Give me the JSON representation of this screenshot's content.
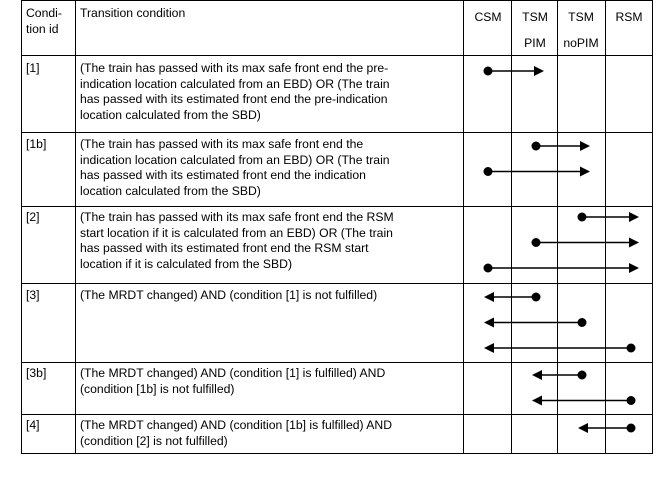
{
  "header": {
    "condition_id": "Condi-\ntion id",
    "transition_condition": "Transition condition",
    "modes": [
      {
        "line1": "CSM",
        "line2": ""
      },
      {
        "line1": "TSM",
        "line2": "PIM"
      },
      {
        "line1": "TSM",
        "line2": "noPIM"
      },
      {
        "line1": "RSM",
        "line2": ""
      }
    ]
  },
  "rows": [
    {
      "id": "[1]",
      "text": "(The train has passed with its max safe front end the pre-\nindication location calculated from an EBD) OR (The train\nhas passed with its estimated front end the pre-indication\nlocation calculated from the SBD)",
      "transitions": [
        {
          "from": "CSM",
          "to": "TSM PIM",
          "direction": "right"
        }
      ]
    },
    {
      "id": "[1b]",
      "text": "(The train has passed with its max safe front end the\nindication location calculated from an EBD) OR (The train\nhas passed with its estimated front end the indication\nlocation calculated from the SBD)",
      "transitions": [
        {
          "from": "TSM PIM",
          "to": "TSM noPIM",
          "direction": "right"
        },
        {
          "from": "CSM",
          "to": "TSM noPIM",
          "direction": "right"
        }
      ]
    },
    {
      "id": "[2]",
      "text": "(The train has passed with its max safe front end the RSM\nstart location if it is calculated from an EBD) OR (The train\nhas passed with its estimated front end the RSM start\nlocation if it is calculated from the SBD)",
      "transitions": [
        {
          "from": "TSM noPIM",
          "to": "RSM",
          "direction": "right"
        },
        {
          "from": "TSM PIM",
          "to": "RSM",
          "direction": "right"
        },
        {
          "from": "CSM",
          "to": "RSM",
          "direction": "right"
        }
      ]
    },
    {
      "id": "[3]",
      "text": "(The MRDT changed) AND (condition [1] is not fulfilled)",
      "transitions": [
        {
          "from": "TSM PIM",
          "to": "CSM",
          "direction": "left"
        },
        {
          "from": "TSM noPIM",
          "to": "CSM",
          "direction": "left"
        },
        {
          "from": "RSM",
          "to": "CSM",
          "direction": "left"
        }
      ]
    },
    {
      "id": "[3b]",
      "text": "(The MRDT changed) AND (condition [1] is fulfilled) AND\n(condition [1b] is not fulfilled)",
      "transitions": [
        {
          "from": "TSM noPIM",
          "to": "TSM PIM",
          "direction": "left"
        },
        {
          "from": "RSM",
          "to": "TSM PIM",
          "direction": "left"
        }
      ]
    },
    {
      "id": "[4]",
      "text": "(The MRDT changed) AND (condition [1b] is fulfilled) AND\n(condition [2] is not fulfilled)",
      "transitions": [
        {
          "from": "RSM",
          "to": "TSM noPIM",
          "direction": "left"
        }
      ]
    }
  ]
}
